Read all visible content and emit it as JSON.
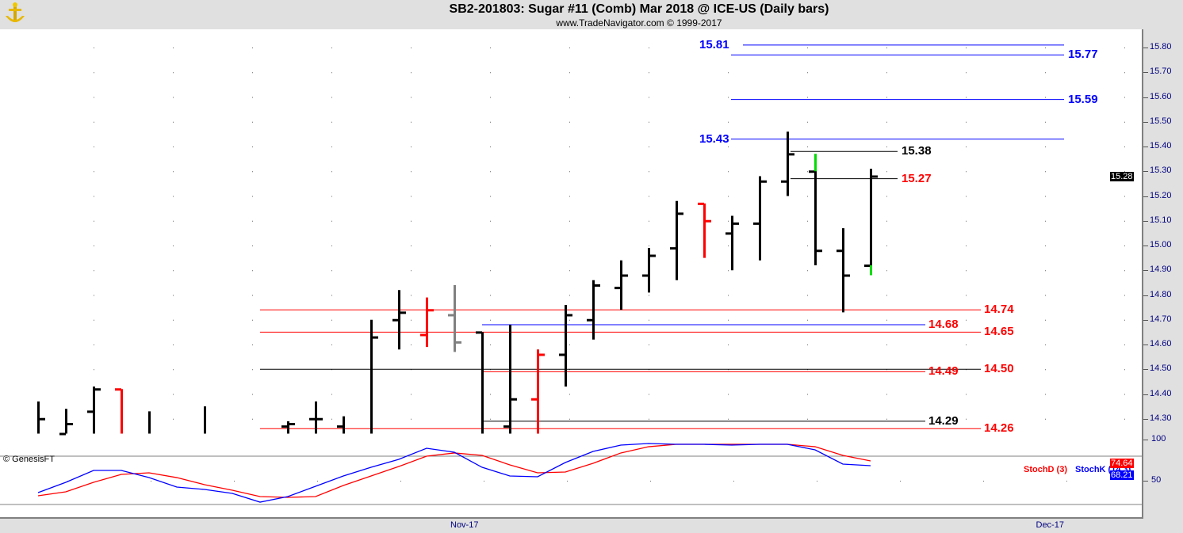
{
  "header": {
    "title": "SB2-201803:  Sugar #11 (Comb) Mar 2018 @ ICE-US  (Daily bars)",
    "subtitle": "www.TradeNavigator.com © 1999-2017",
    "copyright": "© GenesisFT"
  },
  "colors": {
    "up": "#000000",
    "red": "#ff0000",
    "gray": "#808080",
    "green": "#00dd00",
    "blue": "#0000ff"
  },
  "chart_data": {
    "type": "ohlc",
    "title": "SB2-201803:  Sugar #11 (Comb) Mar 2018 @ ICE-US  (Daily bars)",
    "ylim": [
      14.24,
      15.87
    ],
    "y_ticks": [
      "15.80",
      "15.70",
      "15.60",
      "15.50",
      "15.40",
      "15.30",
      "15.20",
      "15.10",
      "15.00",
      "14.90",
      "14.80",
      "14.70",
      "14.60",
      "14.50",
      "14.40",
      "14.30"
    ],
    "x_ticks": [
      {
        "label": "Nov-17",
        "slot": 15.2
      },
      {
        "label": "Dec-17",
        "slot": 36.3
      }
    ],
    "last_price": "15.28",
    "bars": [
      {
        "slot": 0,
        "h": 14.37,
        "l": 14.24,
        "o": null,
        "c": 14.3,
        "color": "up"
      },
      {
        "slot": 1,
        "h": 14.34,
        "l": 14.24,
        "o": 14.24,
        "c": 14.28,
        "color": "up"
      },
      {
        "slot": 2,
        "h": 14.43,
        "l": 14.24,
        "o": 14.33,
        "c": 14.42,
        "color": "up"
      },
      {
        "slot": 3,
        "h": 14.42,
        "l": 14.24,
        "o": 14.42,
        "c": null,
        "color": "red"
      },
      {
        "slot": 4,
        "h": 14.33,
        "l": 14.24,
        "o": null,
        "c": null,
        "color": "up"
      },
      {
        "slot": 6,
        "h": 14.35,
        "l": 14.24,
        "o": null,
        "c": null,
        "color": "up"
      },
      {
        "slot": 9,
        "h": 14.29,
        "l": 14.24,
        "o": 14.27,
        "c": 14.28,
        "color": "up"
      },
      {
        "slot": 10,
        "h": 14.37,
        "l": 14.24,
        "o": 14.3,
        "c": 14.3,
        "color": "up"
      },
      {
        "slot": 11,
        "h": 14.31,
        "l": 14.24,
        "o": 14.27,
        "c": null,
        "color": "up"
      },
      {
        "slot": 12,
        "h": 14.7,
        "l": 14.24,
        "o": null,
        "c": 14.63,
        "color": "up"
      },
      {
        "slot": 13,
        "h": 14.82,
        "l": 14.58,
        "o": 14.7,
        "c": 14.73,
        "color": "up"
      },
      {
        "slot": 14,
        "h": 14.79,
        "l": 14.59,
        "o": 14.64,
        "c": 14.74,
        "color": "red"
      },
      {
        "slot": 15,
        "h": 14.84,
        "l": 14.57,
        "o": 14.72,
        "c": 14.61,
        "color": "gray"
      },
      {
        "slot": 16,
        "h": 14.65,
        "l": 14.24,
        "o": 14.65,
        "c": null,
        "color": "up"
      },
      {
        "slot": 17,
        "h": 14.68,
        "l": 14.24,
        "o": 14.27,
        "c": 14.38,
        "color": "up"
      },
      {
        "slot": 18,
        "h": 14.58,
        "l": 14.24,
        "o": 14.38,
        "c": 14.56,
        "color": "red"
      },
      {
        "slot": 19,
        "h": 14.76,
        "l": 14.43,
        "o": 14.56,
        "c": 14.72,
        "color": "up"
      },
      {
        "slot": 20,
        "h": 14.86,
        "l": 14.62,
        "o": 14.7,
        "c": 14.84,
        "color": "up"
      },
      {
        "slot": 21,
        "h": 14.94,
        "l": 14.74,
        "o": 14.83,
        "c": 14.88,
        "color": "up"
      },
      {
        "slot": 22,
        "h": 14.99,
        "l": 14.81,
        "o": 14.88,
        "c": 14.96,
        "color": "up"
      },
      {
        "slot": 23,
        "h": 15.18,
        "l": 14.86,
        "o": 14.99,
        "c": 15.13,
        "color": "up"
      },
      {
        "slot": 24,
        "h": 15.17,
        "l": 14.95,
        "o": 15.17,
        "c": 15.1,
        "color": "red"
      },
      {
        "slot": 25,
        "h": 15.12,
        "l": 14.9,
        "o": 15.05,
        "c": 15.09,
        "color": "up"
      },
      {
        "slot": 26,
        "h": 15.28,
        "l": 14.94,
        "o": 15.09,
        "c": 15.26,
        "color": "up"
      },
      {
        "slot": 27,
        "h": 15.46,
        "l": 15.2,
        "o": 15.26,
        "c": 15.37,
        "color": "up"
      },
      {
        "slot": 28,
        "h": 15.37,
        "l": 14.92,
        "o": 15.3,
        "c": 14.98,
        "color": "up",
        "ext_high": 15.3
      },
      {
        "slot": 29,
        "h": 15.07,
        "l": 14.73,
        "o": 14.98,
        "c": 14.88,
        "color": "up"
      },
      {
        "slot": 30,
        "h": 15.31,
        "l": 14.88,
        "o": 14.92,
        "c": 15.28,
        "color": "up",
        "ext_low": 14.92
      }
    ],
    "levels": [
      {
        "value": 15.81,
        "label": "15.81",
        "color": "blue",
        "line": "blue",
        "group": "upper",
        "side": "left"
      },
      {
        "value": 15.77,
        "label": "15.77",
        "color": "blue",
        "line": "blue",
        "group": "upper",
        "side": "right"
      },
      {
        "value": 15.59,
        "label": "15.59",
        "color": "blue",
        "line": "blue",
        "group": "upper",
        "side": "right"
      },
      {
        "value": 15.43,
        "label": "15.43",
        "color": "blue",
        "line": "blue",
        "group": "upper",
        "side": "left"
      },
      {
        "value": 15.38,
        "label": "15.38",
        "color": "up",
        "line": "up",
        "group": "near",
        "side": "right"
      },
      {
        "value": 15.27,
        "label": "15.27",
        "color": "red",
        "line": "up",
        "group": "near",
        "side": "right"
      },
      {
        "value": 14.74,
        "label": "14.74",
        "color": "red",
        "line": "red",
        "group": "long",
        "side": "right"
      },
      {
        "value": 14.68,
        "label": "14.68",
        "color": "red",
        "line": "blue",
        "group": "mid",
        "side": "right"
      },
      {
        "value": 14.65,
        "label": "14.65",
        "color": "red",
        "line": "red",
        "group": "long",
        "side": "right"
      },
      {
        "value": 14.5,
        "label": "14.50",
        "color": "red",
        "line": "up",
        "group": "long",
        "side": "right"
      },
      {
        "value": 14.49,
        "label": "14.49",
        "color": "red",
        "line": "red",
        "group": "mid",
        "side": "right"
      },
      {
        "value": 14.29,
        "label": "14.29",
        "color": "up",
        "line": "up",
        "group": "mid",
        "side": "right"
      },
      {
        "value": 14.26,
        "label": "14.26",
        "color": "red",
        "line": "red",
        "group": "long",
        "side": "right"
      }
    ],
    "stochastic": {
      "legend_d": "StochD (3)",
      "legend_k": "StochK (14,3)",
      "y_ticks": [
        "100",
        "50"
      ],
      "d_last": "74.64",
      "k_last": "68.21",
      "k": [
        35.6,
        48.1,
        62.5,
        62.5,
        53.8,
        42.3,
        39.4,
        34.6,
        24.0,
        30.8,
        43.3,
        55.8,
        66.3,
        76.0,
        89.4,
        84.6,
        66.3,
        55.8,
        54.8,
        72.1,
        85.6,
        93.3,
        95.2,
        94.2,
        94.2,
        93.3,
        94.2,
        94.2,
        87.5,
        70.2,
        68.3
      ],
      "d": [
        31.7,
        36.5,
        48.1,
        57.7,
        59.6,
        53.8,
        45.2,
        38.5,
        30.8,
        29.8,
        30.8,
        44.2,
        55.8,
        67.3,
        79.8,
        83.7,
        80.8,
        69.2,
        59.6,
        60.6,
        71.2,
        83.7,
        91.3,
        94.2,
        94.2,
        94.2,
        94.2,
        94.2,
        91.3,
        80.8,
        74.0
      ]
    }
  }
}
